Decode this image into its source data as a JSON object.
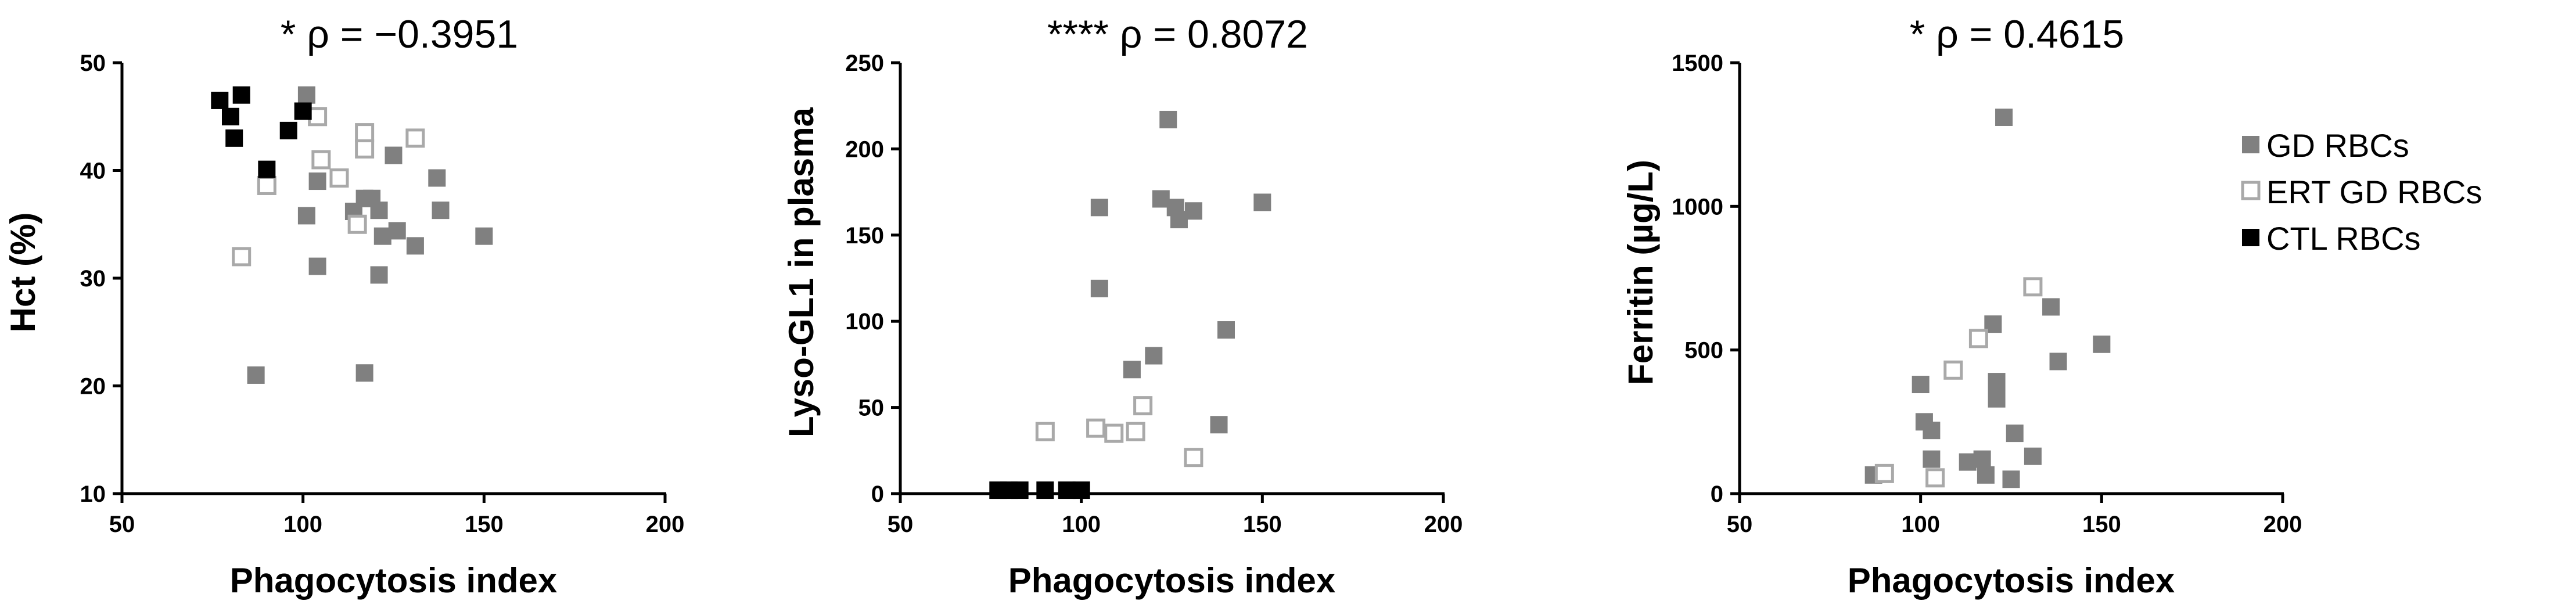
{
  "colors": {
    "GD RBCs": "#808080",
    "ERT GD RBCs": "#a9a9a9",
    "CTL RBCs": "#000000"
  },
  "legend": [
    "GD RBCs",
    "ERT GD RBCs",
    "CTL RBCs"
  ],
  "chart_data": [
    {
      "type": "scatter",
      "title": "* ρ = −0.3951",
      "xlabel": "Phagocytosis index",
      "ylabel": "Hct (%)",
      "xlim": [
        50,
        200
      ],
      "ylim": [
        10,
        50
      ],
      "xticks": [
        50,
        100,
        150,
        200
      ],
      "yticks": [
        10,
        20,
        30,
        40,
        50
      ],
      "series": [
        {
          "name": "GD RBCs",
          "marker": "filled-square",
          "points": [
            [
              87,
              21
            ],
            [
              101,
              47
            ],
            [
              101,
              35.8
            ],
            [
              104,
              39
            ],
            [
              104,
              31.1
            ],
            [
              114,
              36.2
            ],
            [
              117,
              37.4
            ],
            [
              117,
              21.2
            ],
            [
              119,
              37.4
            ],
            [
              121,
              30.3
            ],
            [
              121,
              36.3
            ],
            [
              122,
              33.9
            ],
            [
              125,
              41.4
            ],
            [
              126,
              34.4
            ],
            [
              131,
              33
            ],
            [
              137,
              39.3
            ],
            [
              138,
              36.3
            ],
            [
              150,
              33.9
            ]
          ]
        },
        {
          "name": "ERT GD RBCs",
          "marker": "open-square",
          "points": [
            [
              83,
              32
            ],
            [
              90,
              38.6
            ],
            [
              104,
              45
            ],
            [
              105,
              41
            ],
            [
              110,
              39.3
            ],
            [
              115,
              35
            ],
            [
              117,
              43.5
            ],
            [
              117,
              42
            ],
            [
              131,
              43
            ]
          ]
        },
        {
          "name": "CTL RBCs",
          "marker": "filled-square",
          "points": [
            [
              77,
              46.5
            ],
            [
              80,
              45
            ],
            [
              81,
              43
            ],
            [
              83,
              47
            ],
            [
              90,
              40.1
            ],
            [
              96,
              43.7
            ],
            [
              100,
              45.5
            ]
          ]
        }
      ]
    },
    {
      "type": "scatter",
      "title": "**** ρ = 0.8072",
      "xlabel": "Phagocytosis index",
      "ylabel": "Lyso-GL1 in plasma",
      "xlim": [
        50,
        200
      ],
      "ylim": [
        0,
        250
      ],
      "xticks": [
        50,
        100,
        150,
        200
      ],
      "yticks": [
        0,
        50,
        100,
        150,
        200,
        250
      ],
      "series": [
        {
          "name": "GD RBCs",
          "marker": "filled-square",
          "points": [
            [
              105,
              166
            ],
            [
              105,
              119
            ],
            [
              114,
              72
            ],
            [
              120,
              80
            ],
            [
              122,
              171
            ],
            [
              124,
              217
            ],
            [
              126,
              166
            ],
            [
              127,
              159
            ],
            [
              131,
              164
            ],
            [
              138,
              40
            ],
            [
              140,
              95
            ],
            [
              150,
              169
            ]
          ]
        },
        {
          "name": "ERT GD RBCs",
          "marker": "open-square",
          "points": [
            [
              90,
              36
            ],
            [
              104,
              38
            ],
            [
              109,
              35
            ],
            [
              115,
              36
            ],
            [
              117,
              51
            ],
            [
              131,
              21
            ]
          ]
        },
        {
          "name": "CTL RBCs",
          "marker": "filled-square",
          "points": [
            [
              77,
              2
            ],
            [
              80,
              2
            ],
            [
              83,
              2
            ],
            [
              90,
              2
            ],
            [
              96,
              2
            ],
            [
              100,
              2
            ]
          ]
        }
      ]
    },
    {
      "type": "scatter",
      "title": "* ρ = 0.4615",
      "xlabel": "Phagocytosis index",
      "ylabel": "Ferritin (µg/L)",
      "xlim": [
        50,
        200
      ],
      "ylim": [
        0,
        1500
      ],
      "xticks": [
        50,
        100,
        150,
        200
      ],
      "yticks": [
        0,
        500,
        1000,
        1500
      ],
      "series": [
        {
          "name": "GD RBCs",
          "marker": "filled-square",
          "points": [
            [
              87,
              65
            ],
            [
              100,
              380
            ],
            [
              101,
              250
            ],
            [
              103,
              220
            ],
            [
              103,
              120
            ],
            [
              113,
              110
            ],
            [
              117,
              120
            ],
            [
              118,
              65
            ],
            [
              120,
              590
            ],
            [
              121,
              390
            ],
            [
              121,
              330
            ],
            [
              123,
              1310
            ],
            [
              125,
              50
            ],
            [
              126,
              210
            ],
            [
              131,
              130
            ],
            [
              136,
              650
            ],
            [
              138,
              460
            ],
            [
              150,
              520
            ]
          ]
        },
        {
          "name": "ERT GD RBCs",
          "marker": "open-square",
          "points": [
            [
              90,
              70
            ],
            [
              104,
              55
            ],
            [
              109,
              430
            ],
            [
              116,
              540
            ],
            [
              131,
              720
            ]
          ]
        },
        {
          "name": "CTL RBCs",
          "marker": "filled-square",
          "points": []
        }
      ]
    }
  ]
}
